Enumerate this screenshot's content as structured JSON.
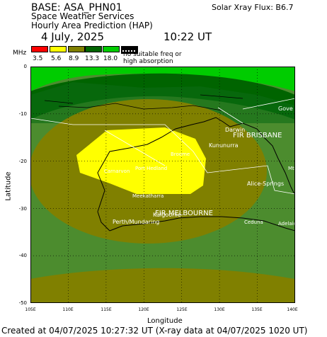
{
  "header": {
    "base": "BASE: ASA_PHN01",
    "service": "Space Weather Services",
    "product": "Hourly Area Prediction (HAP)",
    "date": "4 July, 2025",
    "time": "10:22 UT",
    "xray": "Solar Xray Flux: B6.7"
  },
  "legend": {
    "unit": "MHz",
    "colors": [
      "#ff0000",
      "#ffff00",
      "#808000",
      "#006400",
      "#00cc00"
    ],
    "values": [
      "3.5",
      "5.6",
      "8.9",
      "13.3",
      "18.0"
    ],
    "note_line1": "no suitable freq or",
    "note_line2": "high absorption"
  },
  "map": {
    "lat_ticks": [
      "0",
      "-10",
      "-20",
      "-30",
      "-40",
      "-50"
    ],
    "lon_ticks": [
      "105E",
      "110E",
      "115E",
      "120E",
      "125E",
      "130E",
      "135E",
      "140E"
    ],
    "xlabel": "Longitude",
    "ylabel": "Latitude",
    "fir_labels": [
      "FIR BRISBANE",
      "FIR MELBOURNE"
    ],
    "places": [
      "Darwin",
      "Gove",
      "Kununurra",
      "Alice-Springs",
      "Kalgoorlie",
      "Perth/Mundaring",
      "Ceduna",
      "Adelaide",
      "Broome",
      "Port Hedland",
      "Carnarvon",
      "Meekatharra",
      "Mt"
    ],
    "band_colors": {
      "outer": "#4c8c2e",
      "olive": "#808000",
      "yellow": "#ffff00",
      "north": "#006400",
      "bright": "#00cc00"
    }
  },
  "footer": "Created at 04/07/2025 10:27:32 UT (X-ray data at 04/07/2025 1020 UT)"
}
